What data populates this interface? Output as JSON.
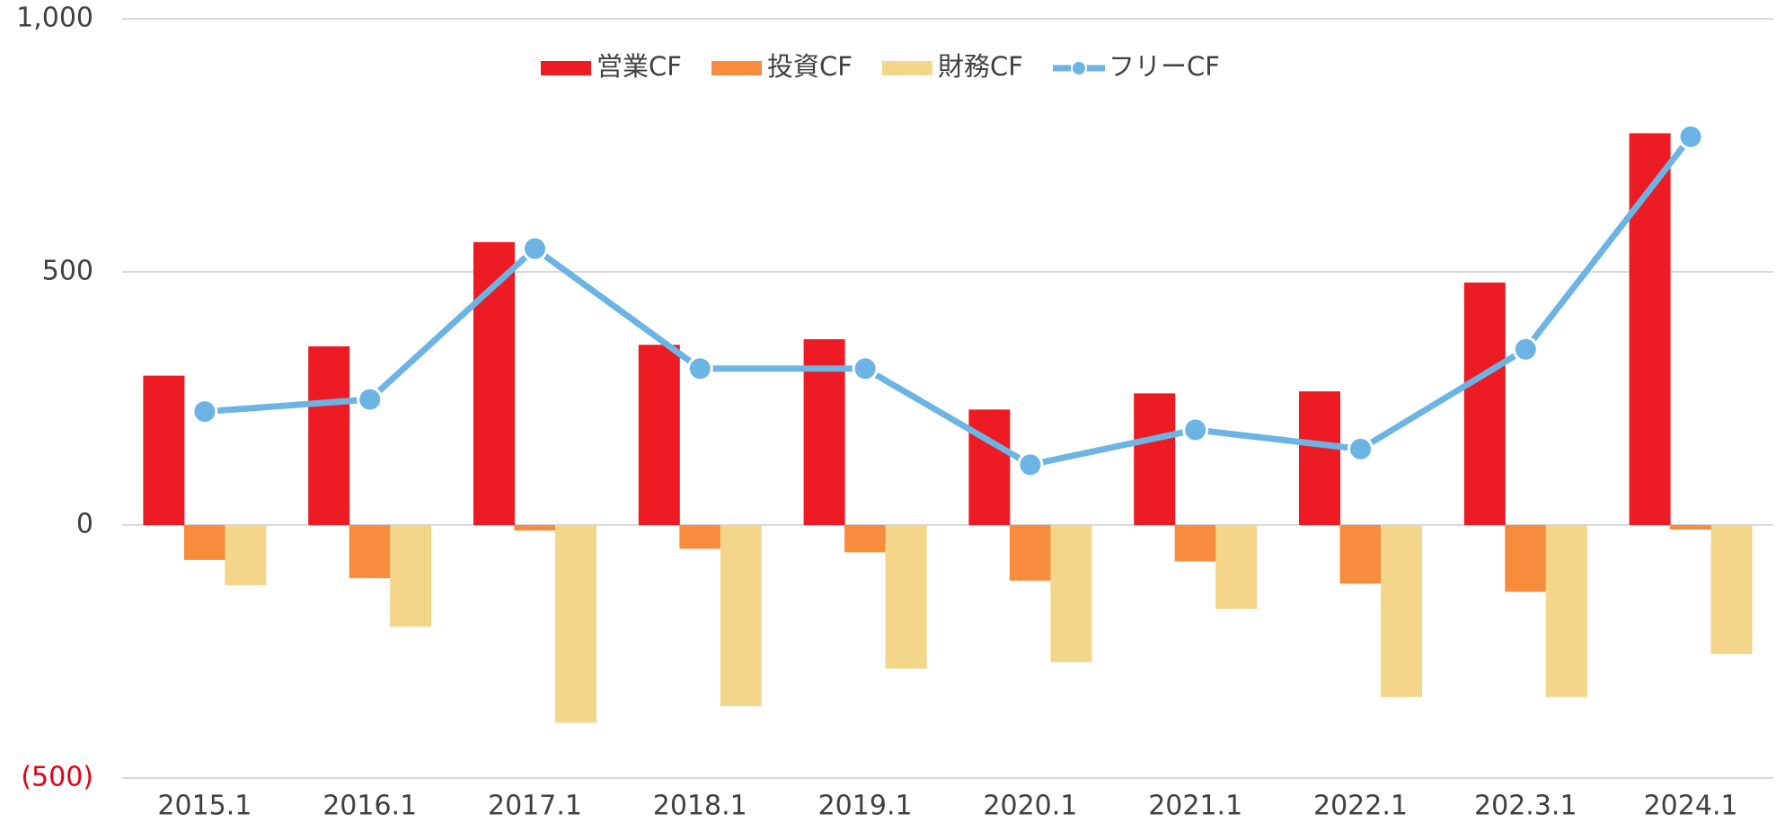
{
  "chart_data": {
    "type": "bar",
    "categories": [
      "2015.1",
      "2016.1",
      "2017.1",
      "2018.1",
      "2019.1",
      "2020.1",
      "2021.1",
      "2022.1",
      "202.3.1",
      "2024.1"
    ],
    "series": [
      {
        "name": "営業CF",
        "type": "bar",
        "color": "#ed1c24",
        "values": [
          295,
          353,
          559,
          356,
          367,
          228,
          260,
          264,
          479,
          774
        ]
      },
      {
        "name": "投資CF",
        "type": "bar",
        "color": "#f78c3c",
        "values": [
          -69,
          -105,
          -11,
          -47,
          -54,
          -110,
          -72,
          -116,
          -132,
          -9
        ]
      },
      {
        "name": "財務CF",
        "type": "bar",
        "color": "#f4d68a",
        "values": [
          -119,
          -201,
          -391,
          -358,
          -284,
          -271,
          -166,
          -340,
          -340,
          -255
        ]
      },
      {
        "name": "フリーCF",
        "type": "line",
        "color": "#6cb4e4",
        "values": [
          224,
          248,
          546,
          309,
          309,
          119,
          188,
          150,
          347,
          767
        ]
      }
    ],
    "ylim": [
      -500,
      1000
    ],
    "yticks": [
      {
        "value": -500,
        "label": "(500)"
      },
      0,
      500,
      {
        "value": 1000,
        "label": "1,000"
      }
    ],
    "grid": true,
    "legend": "top",
    "negative_tick_color": "#e60012"
  }
}
